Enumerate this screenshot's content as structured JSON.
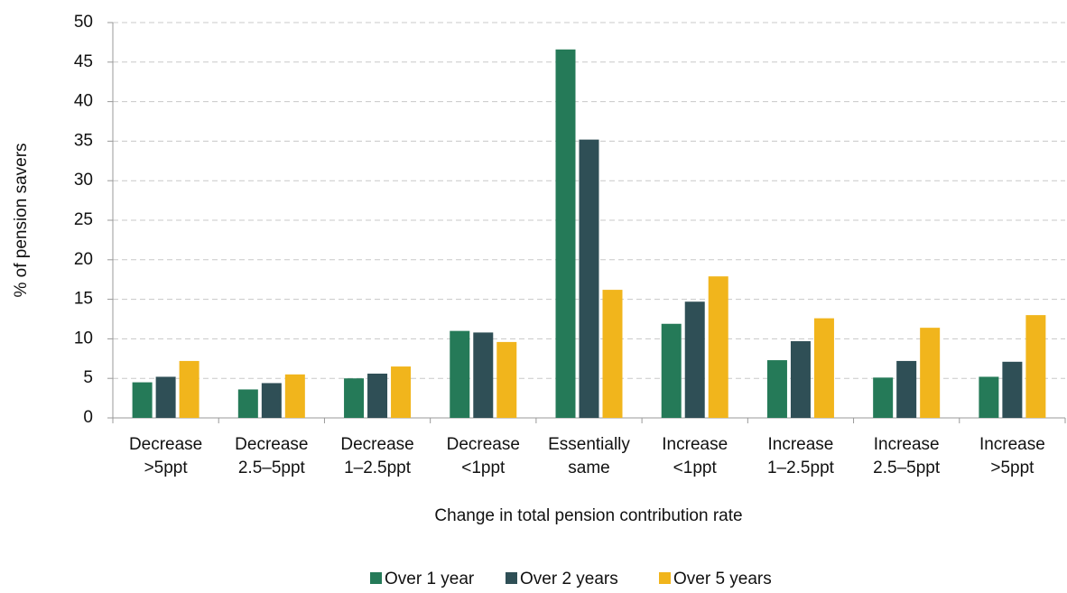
{
  "chart_data": {
    "type": "bar",
    "y_label": "% of pension savers",
    "x_label": "Change in total pension contribution rate",
    "categories": [
      [
        "Decrease",
        ">5ppt"
      ],
      [
        "Decrease",
        "2.5–5ppt"
      ],
      [
        "Decrease",
        "1–2.5ppt"
      ],
      [
        "Decrease",
        "<1ppt"
      ],
      [
        "Essentially",
        "same"
      ],
      [
        "Increase",
        "<1ppt"
      ],
      [
        "Increase",
        "1–2.5ppt"
      ],
      [
        "Increase",
        "2.5–5ppt"
      ],
      [
        "Increase",
        ">5ppt"
      ]
    ],
    "series": [
      {
        "name": "Over 1 year",
        "color": "#257a58",
        "values": [
          4.5,
          3.6,
          5.0,
          11.0,
          46.6,
          11.9,
          7.3,
          5.1,
          5.2
        ]
      },
      {
        "name": "Over 2 years",
        "color": "#2f4f56",
        "values": [
          5.2,
          4.4,
          5.6,
          10.8,
          35.2,
          14.7,
          9.7,
          7.2,
          7.1
        ]
      },
      {
        "name": "Over 5 years",
        "color": "#f1b51c",
        "values": [
          7.2,
          5.5,
          6.5,
          9.6,
          16.2,
          17.9,
          12.6,
          11.4,
          13.0
        ]
      }
    ],
    "ylim": [
      0,
      50
    ],
    "yticks": [
      0,
      5,
      10,
      15,
      20,
      25,
      30,
      35,
      40,
      45,
      50
    ],
    "grid": true,
    "legend": "bottom"
  }
}
